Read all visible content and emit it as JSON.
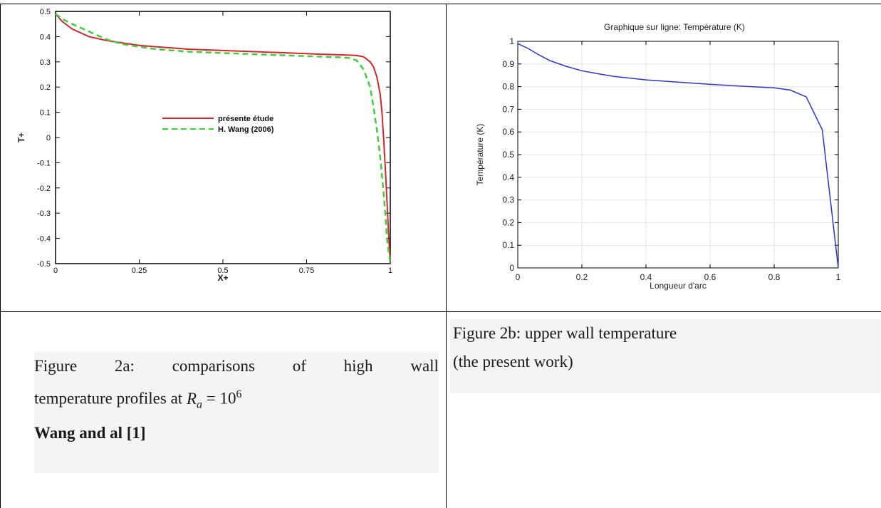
{
  "layout_table": {},
  "fig_a": {
    "caption_line1_words": [
      "Figure",
      "2a:",
      "comparisons",
      "of",
      "high",
      "wall"
    ],
    "caption_line2_text": "temperature profiles at ",
    "caption_math_R": "R",
    "caption_math_sub": "a",
    "caption_math_eq": " = 10",
    "caption_math_sup": "6",
    "caption_line3": "Wang and al [1]"
  },
  "fig_b": {
    "caption_line1": "Figure 2b: upper wall temperature",
    "caption_line2": "(the present work)"
  },
  "chart_data": [
    {
      "type": "line",
      "title": "",
      "xlabel": "X+",
      "ylabel": "T+",
      "xlim": [
        0,
        1
      ],
      "ylim": [
        -0.5,
        0.5
      ],
      "x_ticks": [
        "0",
        "0.25",
        "0.5",
        "0.75",
        "1"
      ],
      "y_ticks": [
        "0.5",
        "0.4",
        "0.3",
        "0.2",
        "0.1",
        "0",
        "-0.1",
        "-0.2",
        "-0.3",
        "-0.4",
        "-0.5"
      ],
      "legend_position": "center-right",
      "grid": false,
      "series": [
        {
          "name": "présente étude",
          "color": "#d6262c",
          "style": "solid",
          "x": [
            0,
            0.02,
            0.05,
            0.1,
            0.15,
            0.2,
            0.25,
            0.3,
            0.4,
            0.5,
            0.6,
            0.7,
            0.8,
            0.85,
            0.9,
            0.92,
            0.94,
            0.95,
            0.96,
            0.97,
            0.975,
            0.98,
            0.985,
            0.99,
            0.995,
            1.0
          ],
          "values": [
            0.49,
            0.46,
            0.43,
            0.4,
            0.385,
            0.375,
            0.365,
            0.36,
            0.35,
            0.345,
            0.34,
            0.335,
            0.33,
            0.328,
            0.325,
            0.32,
            0.3,
            0.28,
            0.24,
            0.17,
            0.1,
            0.0,
            -0.12,
            -0.25,
            -0.38,
            -0.5
          ]
        },
        {
          "name": "H. Wang (2006)",
          "color": "#3fcf3a",
          "style": "dashed",
          "x": [
            0,
            0.02,
            0.05,
            0.1,
            0.15,
            0.2,
            0.25,
            0.3,
            0.4,
            0.5,
            0.6,
            0.7,
            0.8,
            0.85,
            0.88,
            0.9,
            0.92,
            0.94,
            0.95,
            0.96,
            0.965,
            0.97,
            0.975,
            0.98,
            0.985,
            0.99,
            1.0
          ],
          "values": [
            0.49,
            0.47,
            0.45,
            0.42,
            0.39,
            0.37,
            0.36,
            0.35,
            0.34,
            0.335,
            0.33,
            0.325,
            0.32,
            0.318,
            0.315,
            0.305,
            0.27,
            0.2,
            0.12,
            0.03,
            -0.02,
            -0.08,
            -0.15,
            -0.22,
            -0.3,
            -0.4,
            -0.5
          ]
        }
      ]
    },
    {
      "type": "line",
      "title": "Graphique sur ligne: Température (K)",
      "xlabel": "Longueur d'arc",
      "ylabel": "Température (K)",
      "xlim": [
        0,
        1
      ],
      "ylim": [
        0,
        1
      ],
      "x_ticks": [
        "0",
        "0.2",
        "0.4",
        "0.6",
        "0.8",
        "1"
      ],
      "y_ticks": [
        "0",
        "0.1",
        "0.2",
        "0.3",
        "0.4",
        "0.5",
        "0.6",
        "0.7",
        "0.8",
        "0.9",
        "1"
      ],
      "grid": true,
      "series": [
        {
          "color": "#2a35d6",
          "style": "solid",
          "x": [
            0,
            0.03,
            0.06,
            0.1,
            0.15,
            0.2,
            0.25,
            0.3,
            0.4,
            0.5,
            0.6,
            0.7,
            0.8,
            0.85,
            0.9,
            0.95,
            1.0
          ],
          "values": [
            0.99,
            0.97,
            0.945,
            0.915,
            0.89,
            0.87,
            0.857,
            0.845,
            0.83,
            0.82,
            0.81,
            0.802,
            0.795,
            0.785,
            0.755,
            0.61,
            0.0
          ]
        }
      ]
    }
  ]
}
